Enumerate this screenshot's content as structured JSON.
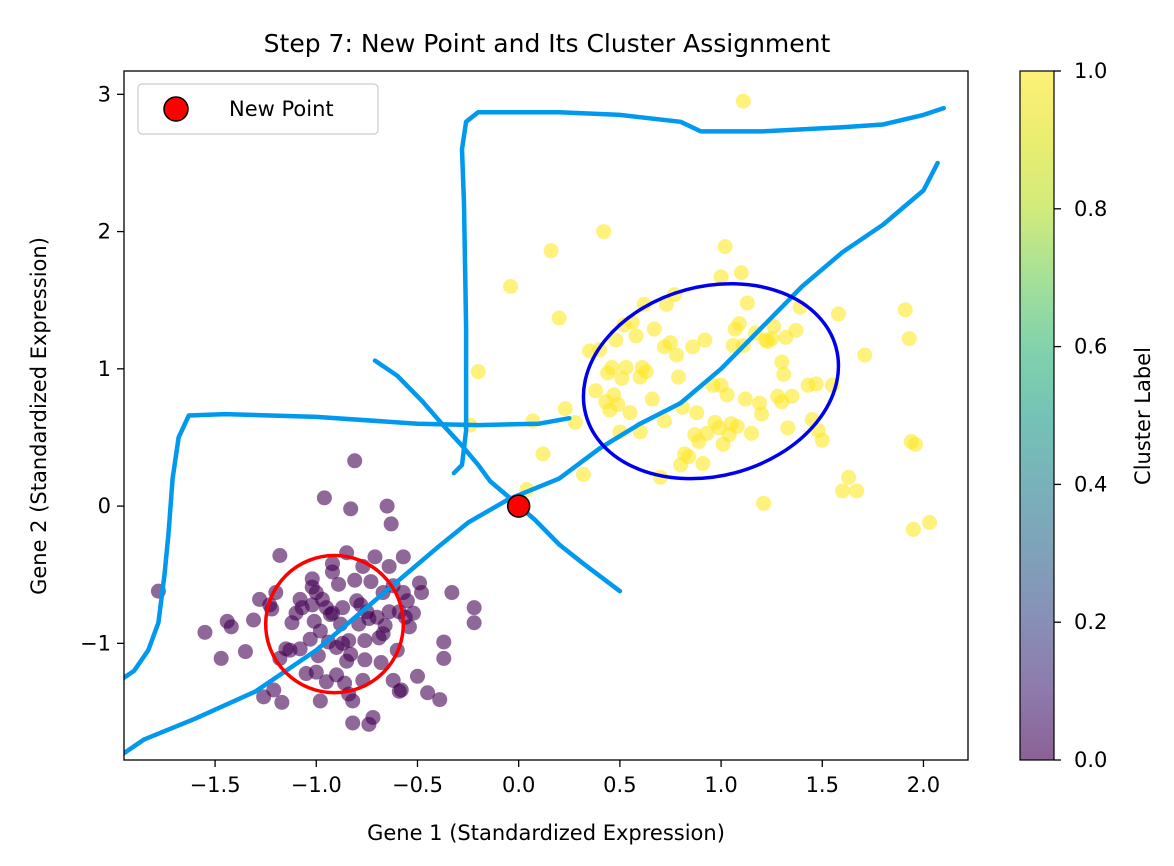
{
  "chart_data": {
    "type": "scatter",
    "title": "Step 7: New Point and Its Cluster Assignment",
    "xlabel": "Gene 1 (Standardized Expression)",
    "ylabel": "Gene 2 (Standardized Expression)",
    "xlim": [
      -1.95,
      2.22
    ],
    "ylim": [
      -1.85,
      3.17
    ],
    "xticks": [
      -1.5,
      -1.0,
      -0.5,
      0.0,
      0.5,
      1.0,
      1.5,
      2.0
    ],
    "xtick_labels": [
      "−1.5",
      "−1.0",
      "−0.5",
      "0.0",
      "0.5",
      "1.0",
      "1.5",
      "2.0"
    ],
    "yticks": [
      -1,
      0,
      1,
      2,
      3
    ],
    "ytick_labels": [
      "−1",
      "0",
      "1",
      "2",
      "3"
    ],
    "grid": false,
    "legend": {
      "placement": "top-left",
      "entries": [
        "New Point"
      ]
    },
    "colorbar": {
      "label": "Cluster Label",
      "range": [
        0,
        1
      ],
      "ticks": [
        0.0,
        0.2,
        0.4,
        0.6,
        0.8,
        1.0
      ],
      "tick_labels": [
        "0.0",
        "0.2",
        "0.4",
        "0.6",
        "0.8",
        "1.0"
      ],
      "colormap": "viridis"
    },
    "colors": {
      "cluster_0": "#440154",
      "cluster_1": "#fde725",
      "new_point": "#ff0000",
      "ellipse_0": "#ff0000",
      "ellipse_1": "#0000ee",
      "annotation_lines": "#0099ee"
    },
    "series": [
      {
        "label": 0,
        "points": [
          [
            -1.78,
            -0.62
          ],
          [
            -1.55,
            -0.92
          ],
          [
            -1.47,
            -1.11
          ],
          [
            -1.44,
            -0.84
          ],
          [
            -1.42,
            -0.88
          ],
          [
            -1.35,
            -1.06
          ],
          [
            -1.31,
            -0.83
          ],
          [
            -1.28,
            -0.68
          ],
          [
            -1.26,
            -1.39
          ],
          [
            -1.23,
            -0.72
          ],
          [
            -1.22,
            -0.75
          ],
          [
            -1.21,
            -1.34
          ],
          [
            -1.2,
            -0.63
          ],
          [
            -1.18,
            -0.36
          ],
          [
            -1.18,
            -1.11
          ],
          [
            -1.17,
            -1.43
          ],
          [
            -1.15,
            -1.04
          ],
          [
            -1.13,
            -1.05
          ],
          [
            -1.12,
            -0.85
          ],
          [
            -1.1,
            -0.78
          ],
          [
            -1.08,
            -0.68
          ],
          [
            -1.08,
            -1.04
          ],
          [
            -1.07,
            -0.74
          ],
          [
            -1.05,
            -1.22
          ],
          [
            -1.03,
            -0.97
          ],
          [
            -1.02,
            -0.72
          ],
          [
            -1.02,
            -0.53
          ],
          [
            -1.02,
            -0.59
          ],
          [
            -1.01,
            -0.84
          ],
          [
            -1.0,
            -1.21
          ],
          [
            -1.0,
            -0.63
          ],
          [
            -0.99,
            -1.09
          ],
          [
            -0.98,
            -1.42
          ],
          [
            -0.98,
            -0.91
          ],
          [
            -0.97,
            -0.68
          ],
          [
            -0.96,
            0.06
          ],
          [
            -0.95,
            -1.28
          ],
          [
            -0.95,
            -0.74
          ],
          [
            -0.94,
            -0.99
          ],
          [
            -0.93,
            -0.79
          ],
          [
            -0.92,
            -0.78
          ],
          [
            -0.92,
            -0.48
          ],
          [
            -0.9,
            -1.03
          ],
          [
            -0.9,
            -1.23
          ],
          [
            -0.89,
            -0.57
          ],
          [
            -0.88,
            -0.86
          ],
          [
            -0.87,
            -0.74
          ],
          [
            -0.87,
            -1.0
          ],
          [
            -0.86,
            -1.29
          ],
          [
            -0.85,
            -0.34
          ],
          [
            -0.85,
            -1.13
          ],
          [
            -0.84,
            -0.98
          ],
          [
            -0.84,
            -1.37
          ],
          [
            -0.83,
            -1.08
          ],
          [
            -0.82,
            -1.42
          ],
          [
            -0.83,
            -0.02
          ],
          [
            -0.82,
            -1.58
          ],
          [
            -0.81,
            0.33
          ],
          [
            -0.81,
            -0.54
          ],
          [
            -0.8,
            -0.69
          ],
          [
            -0.79,
            -0.86
          ],
          [
            -0.78,
            -0.72
          ],
          [
            -0.77,
            -1.27
          ],
          [
            -0.77,
            -0.44
          ],
          [
            -0.76,
            -1.12
          ],
          [
            -0.76,
            -0.98
          ],
          [
            -0.75,
            -0.77
          ],
          [
            -0.74,
            -1.59
          ],
          [
            -0.74,
            -0.82
          ],
          [
            -0.73,
            -0.55
          ],
          [
            -0.72,
            -1.54
          ],
          [
            -0.71,
            -0.37
          ],
          [
            -0.7,
            -0.81
          ],
          [
            -0.69,
            -0.96
          ],
          [
            -0.68,
            -1.14
          ],
          [
            -0.67,
            -0.93
          ],
          [
            -0.67,
            -0.63
          ],
          [
            -0.66,
            -0.87
          ],
          [
            -0.65,
            0.0
          ],
          [
            -0.64,
            -0.77
          ],
          [
            -0.63,
            -0.13
          ],
          [
            -0.62,
            -0.58
          ],
          [
            -0.62,
            -1.27
          ],
          [
            -0.6,
            -1.05
          ],
          [
            -0.59,
            -0.77
          ],
          [
            -0.59,
            -1.35
          ],
          [
            -0.58,
            -1.34
          ],
          [
            -0.57,
            -0.63
          ],
          [
            -0.57,
            -0.37
          ],
          [
            -0.56,
            -0.81
          ],
          [
            -0.55,
            -0.69
          ],
          [
            -0.54,
            -0.88
          ],
          [
            -0.52,
            -0.78
          ],
          [
            -0.5,
            -1.24
          ],
          [
            -0.49,
            -0.56
          ],
          [
            -0.48,
            -0.63
          ],
          [
            -0.45,
            -1.36
          ],
          [
            -0.39,
            -1.41
          ],
          [
            -0.37,
            -0.99
          ],
          [
            -0.37,
            -1.11
          ],
          [
            -0.33,
            -0.63
          ],
          [
            -0.22,
            -0.74
          ],
          [
            -0.22,
            -0.85
          ],
          [
            -0.64,
            -0.44
          ],
          [
            -0.92,
            -0.42
          ]
        ]
      },
      {
        "label": 1,
        "points": [
          [
            -0.24,
            0.59
          ],
          [
            -0.2,
            0.98
          ],
          [
            -0.04,
            1.6
          ],
          [
            0.04,
            0.12
          ],
          [
            0.07,
            0.62
          ],
          [
            0.12,
            0.38
          ],
          [
            0.16,
            1.86
          ],
          [
            0.2,
            1.37
          ],
          [
            0.23,
            0.71
          ],
          [
            0.28,
            0.61
          ],
          [
            0.32,
            0.23
          ],
          [
            0.35,
            1.13
          ],
          [
            0.38,
            0.84
          ],
          [
            0.4,
            1.14
          ],
          [
            0.42,
            2.0
          ],
          [
            0.43,
            0.76
          ],
          [
            0.44,
            0.97
          ],
          [
            0.45,
            0.7
          ],
          [
            0.46,
            1.01
          ],
          [
            0.47,
            0.81
          ],
          [
            0.48,
            1.21
          ],
          [
            0.49,
            0.74
          ],
          [
            0.5,
            0.54
          ],
          [
            0.51,
            0.93
          ],
          [
            0.52,
            1.32
          ],
          [
            0.53,
            1.01
          ],
          [
            0.55,
            0.68
          ],
          [
            0.56,
            1.34
          ],
          [
            0.58,
            1.24
          ],
          [
            0.6,
            0.94
          ],
          [
            0.6,
            0.54
          ],
          [
            0.61,
            1.01
          ],
          [
            0.62,
            1.47
          ],
          [
            0.63,
            0.98
          ],
          [
            0.66,
            0.78
          ],
          [
            0.67,
            1.29
          ],
          [
            0.7,
            0.21
          ],
          [
            0.72,
            1.16
          ],
          [
            0.72,
            0.62
          ],
          [
            0.73,
            1.47
          ],
          [
            0.75,
            1.19
          ],
          [
            0.77,
            1.54
          ],
          [
            0.78,
            1.1
          ],
          [
            0.79,
            0.94
          ],
          [
            0.8,
            0.3
          ],
          [
            0.81,
            0.72
          ],
          [
            0.82,
            0.38
          ],
          [
            0.84,
            0.36
          ],
          [
            0.86,
            1.16
          ],
          [
            0.87,
            0.52
          ],
          [
            0.88,
            0.68
          ],
          [
            0.89,
            0.47
          ],
          [
            0.91,
            0.31
          ],
          [
            0.92,
            1.21
          ],
          [
            0.93,
            0.53
          ],
          [
            0.96,
            0.88
          ],
          [
            0.97,
            0.61
          ],
          [
            0.99,
            0.57
          ],
          [
            1.0,
            1.67
          ],
          [
            1.0,
            0.88
          ],
          [
            1.01,
            0.45
          ],
          [
            1.02,
            1.89
          ],
          [
            1.03,
            0.81
          ],
          [
            1.04,
            0.52
          ],
          [
            1.05,
            0.6
          ],
          [
            1.06,
            1.17
          ],
          [
            1.07,
            1.29
          ],
          [
            1.08,
            0.58
          ],
          [
            1.09,
            1.33
          ],
          [
            1.1,
            1.7
          ],
          [
            1.11,
            1.17
          ],
          [
            1.11,
            2.95
          ],
          [
            1.12,
            0.78
          ],
          [
            1.13,
            1.48
          ],
          [
            1.15,
            0.53
          ],
          [
            1.17,
            1.26
          ],
          [
            1.19,
            0.75
          ],
          [
            1.2,
            0.67
          ],
          [
            1.21,
            0.02
          ],
          [
            1.22,
            1.21
          ],
          [
            1.23,
            1.2
          ],
          [
            1.25,
            1.22
          ],
          [
            1.26,
            1.31
          ],
          [
            1.28,
            0.8
          ],
          [
            1.3,
            1.05
          ],
          [
            1.31,
            0.96
          ],
          [
            1.32,
            1.23
          ],
          [
            1.33,
            0.57
          ],
          [
            1.35,
            0.8
          ],
          [
            1.37,
            1.28
          ],
          [
            1.39,
            1.45
          ],
          [
            1.43,
            0.88
          ],
          [
            1.45,
            0.63
          ],
          [
            1.47,
            0.89
          ],
          [
            1.48,
            0.55
          ],
          [
            1.5,
            0.48
          ],
          [
            1.55,
            0.88
          ],
          [
            1.58,
            1.4
          ],
          [
            1.6,
            0.11
          ],
          [
            1.63,
            0.21
          ],
          [
            1.67,
            0.11
          ],
          [
            1.71,
            1.1
          ],
          [
            1.91,
            1.43
          ],
          [
            1.93,
            1.22
          ],
          [
            1.94,
            0.47
          ],
          [
            1.96,
            0.45
          ],
          [
            1.95,
            -0.17
          ],
          [
            2.03,
            -0.12
          ],
          [
            1.3,
            0.76
          ]
        ]
      }
    ],
    "new_point": {
      "label": "New Point",
      "x": 0.0,
      "y": 0.0
    },
    "ellipses": [
      {
        "cluster": 0,
        "cx": -0.91,
        "cy": -0.86,
        "rx": 0.34,
        "ry": 0.5,
        "angle_deg": 0
      },
      {
        "cluster": 1,
        "cx": 0.95,
        "cy": 0.91,
        "rx": 0.64,
        "ry": 0.69,
        "angle_deg": 15
      }
    ],
    "annotation_strokes": [
      [
        [
          -2.0,
          -1.3
        ],
        [
          -1.9,
          -1.2
        ],
        [
          -1.83,
          -1.05
        ],
        [
          -1.78,
          -0.85
        ],
        [
          -1.75,
          -0.5
        ],
        [
          -1.73,
          -0.2
        ],
        [
          -1.71,
          0.2
        ],
        [
          -1.68,
          0.5
        ],
        [
          -1.63,
          0.66
        ],
        [
          -1.45,
          0.67
        ],
        [
          -1.0,
          0.65
        ],
        [
          -0.5,
          0.6
        ],
        [
          -0.2,
          0.59
        ],
        [
          0.1,
          0.6
        ],
        [
          0.25,
          0.64
        ]
      ],
      [
        [
          -0.32,
          0.24
        ],
        [
          -0.28,
          0.3
        ],
        [
          -0.26,
          0.55
        ],
        [
          -0.26,
          1.3
        ],
        [
          -0.27,
          2.2
        ],
        [
          -0.28,
          2.6
        ],
        [
          -0.26,
          2.8
        ],
        [
          -0.2,
          2.87
        ],
        [
          0.2,
          2.87
        ],
        [
          0.5,
          2.85
        ],
        [
          0.8,
          2.8
        ],
        [
          0.9,
          2.73
        ],
        [
          1.2,
          2.73
        ],
        [
          1.6,
          2.76
        ],
        [
          1.8,
          2.78
        ],
        [
          2.0,
          2.85
        ],
        [
          2.1,
          2.9
        ]
      ],
      [
        [
          -0.71,
          1.06
        ],
        [
          -0.6,
          0.95
        ],
        [
          -0.48,
          0.77
        ],
        [
          -0.38,
          0.6
        ],
        [
          -0.28,
          0.44
        ],
        [
          -0.2,
          0.3
        ],
        [
          -0.14,
          0.18
        ],
        [
          -0.06,
          0.08
        ],
        [
          0.08,
          -0.1
        ],
        [
          0.2,
          -0.28
        ],
        [
          0.32,
          -0.42
        ],
        [
          0.5,
          -0.62
        ]
      ],
      [
        [
          -2.0,
          -1.85
        ],
        [
          -1.85,
          -1.7
        ],
        [
          -1.6,
          -1.55
        ],
        [
          -1.3,
          -1.35
        ],
        [
          -1.0,
          -1.05
        ],
        [
          -0.8,
          -0.8
        ],
        [
          -0.6,
          -0.55
        ],
        [
          -0.4,
          -0.3
        ],
        [
          -0.25,
          -0.12
        ],
        [
          -0.05,
          0.05
        ],
        [
          0.2,
          0.2
        ],
        [
          0.4,
          0.42
        ],
        [
          0.6,
          0.6
        ],
        [
          0.8,
          0.75
        ],
        [
          1.0,
          1.0
        ],
        [
          1.2,
          1.3
        ],
        [
          1.4,
          1.6
        ],
        [
          1.6,
          1.85
        ],
        [
          1.8,
          2.05
        ],
        [
          2.0,
          2.3
        ],
        [
          2.07,
          2.5
        ]
      ]
    ]
  }
}
